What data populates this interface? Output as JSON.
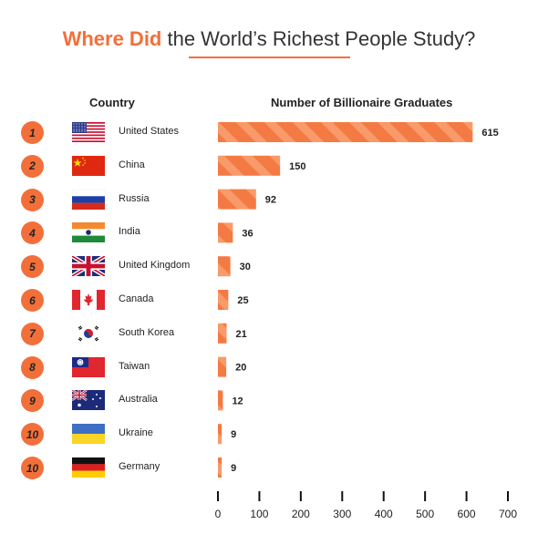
{
  "title": {
    "accent": "Where Did",
    "rest": " the World’s Richest People Study?"
  },
  "headers": {
    "country": "Country",
    "value": "Number of Billionaire Graduates"
  },
  "colors": {
    "accent": "#f36f3a",
    "bar": "#f47a43",
    "stripe": "#f89a6a"
  },
  "chart_data": {
    "type": "bar",
    "orientation": "horizontal",
    "title": "Where Did the World’s Richest People Study?",
    "xlabel": "Number of Billionaire Graduates",
    "ylabel": "Country",
    "xlim": [
      0,
      700
    ],
    "xticks": [
      0,
      100,
      200,
      300,
      400,
      500,
      600,
      700
    ],
    "rows": [
      {
        "rank": "1",
        "country": "United States",
        "flag": "us-flag-icon",
        "value": 615
      },
      {
        "rank": "2",
        "country": "China",
        "flag": "china-flag-icon",
        "value": 150
      },
      {
        "rank": "3",
        "country": "Russia",
        "flag": "russia-flag-icon",
        "value": 92
      },
      {
        "rank": "4",
        "country": "India",
        "flag": "india-flag-icon",
        "value": 36
      },
      {
        "rank": "5",
        "country": "United Kingdom",
        "flag": "uk-flag-icon",
        "value": 30
      },
      {
        "rank": "6",
        "country": "Canada",
        "flag": "canada-flag-icon",
        "value": 25
      },
      {
        "rank": "7",
        "country": "South Korea",
        "flag": "south-korea-flag-icon",
        "value": 21
      },
      {
        "rank": "8",
        "country": "Taiwan",
        "flag": "taiwan-flag-icon",
        "value": 20
      },
      {
        "rank": "9",
        "country": "Australia",
        "flag": "australia-flag-icon",
        "value": 12
      },
      {
        "rank": "10",
        "country": "Ukraine",
        "flag": "ukraine-flag-icon",
        "value": 9
      },
      {
        "rank": "10",
        "country": "Germany",
        "flag": "germany-flag-icon",
        "value": 9
      }
    ]
  }
}
